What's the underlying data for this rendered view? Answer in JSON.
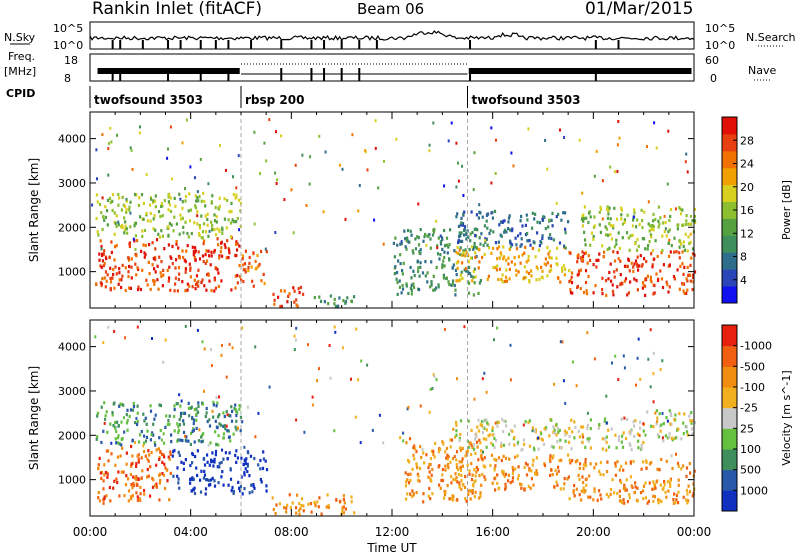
{
  "header": {
    "station": "Rankin Inlet (fitACF)",
    "beam": "Beam 06",
    "date": "01/Mar/2015"
  },
  "top_panels": {
    "nsky_label": "N.Sky",
    "nsky_ticks": [
      "10^5",
      "10^0"
    ],
    "nsearch_label": "N.Search",
    "nsearch_ticks": [
      "10^5",
      "10^0"
    ],
    "freq_label": "Freq.",
    "freq_unit": "[MHz]",
    "freq_ticks": [
      "18",
      "8"
    ],
    "nave_label": "Nave",
    "nave_ticks": [
      "60",
      "0"
    ],
    "cpid_label": "CPID",
    "cpid_segments": [
      {
        "label": "twofsound 3503",
        "start_h": 0,
        "end_h": 6
      },
      {
        "label": "rbsp 200",
        "start_h": 6,
        "end_h": 15
      },
      {
        "label": "twofsound 3503",
        "start_h": 15,
        "end_h": 24
      }
    ]
  },
  "chart_data": [
    {
      "type": "heatmap",
      "title": "",
      "xlabel": "Time UT",
      "ylabel": "Slant Range [km]",
      "xlim": [
        0,
        24
      ],
      "ylim": [
        180,
        4600
      ],
      "x_ticks": [
        "00:00",
        "04:00",
        "08:00",
        "12:00",
        "16:00",
        "20:00",
        "00:00"
      ],
      "y_ticks": [
        1000,
        2000,
        3000,
        4000
      ],
      "colorbar": {
        "label": "Power [dB]",
        "ticks": [
          "4",
          "8",
          "12",
          "16",
          "20",
          "24",
          "28"
        ],
        "colors": [
          "#1010f0",
          "#2a45b8",
          "#2f6e8a",
          "#3f8f5c",
          "#55a040",
          "#8cc030",
          "#d8d020",
          "#f0a000",
          "#f07000",
          "#e84010",
          "#e01008"
        ]
      },
      "regions": [
        {
          "t0": 0.2,
          "t1": 6.0,
          "r0": 600,
          "r1": 1800,
          "level": 9
        },
        {
          "t0": 0.2,
          "t1": 6.0,
          "r0": 1800,
          "r1": 2800,
          "level": 5
        },
        {
          "t0": 6.0,
          "t1": 7.0,
          "r0": 700,
          "r1": 1500,
          "level": 8
        },
        {
          "t0": 7.2,
          "t1": 8.5,
          "r0": 250,
          "r1": 700,
          "level": 9
        },
        {
          "t0": 8.5,
          "t1": 10.5,
          "r0": 250,
          "r1": 500,
          "level": 3
        },
        {
          "t0": 12.0,
          "t1": 15.5,
          "r0": 500,
          "r1": 2000,
          "level": 3
        },
        {
          "t0": 14.5,
          "t1": 19.0,
          "r0": 800,
          "r1": 1600,
          "level": 7
        },
        {
          "t0": 14.5,
          "t1": 19.0,
          "r0": 1600,
          "r1": 2400,
          "level": 2
        },
        {
          "t0": 19.0,
          "t1": 24.0,
          "r0": 500,
          "r1": 1500,
          "level": 9
        },
        {
          "t0": 19.5,
          "t1": 24.0,
          "r0": 1500,
          "r1": 2500,
          "level": 5
        }
      ]
    },
    {
      "type": "heatmap",
      "title": "",
      "xlabel": "Time UT",
      "ylabel": "Slant Range [km]",
      "xlim": [
        0,
        24
      ],
      "ylim": [
        180,
        4600
      ],
      "x_ticks": [
        "00:00",
        "04:00",
        "08:00",
        "12:00",
        "16:00",
        "20:00",
        "00:00"
      ],
      "y_ticks": [
        1000,
        2000,
        3000,
        4000
      ],
      "colorbar": {
        "label": "Velocity [m s^-1]",
        "ticks": [
          "1000",
          "500",
          "100",
          "25",
          "-25",
          "-100",
          "-500",
          "-1000"
        ],
        "colors": [
          "#1030c0",
          "#2858a8",
          "#3f8f5c",
          "#66c040",
          "#c8c8c8",
          "#f0b020",
          "#f08c10",
          "#f06010",
          "#e82010"
        ]
      },
      "regions": [
        {
          "t0": 0.2,
          "t1": 3.2,
          "r0": 500,
          "r1": 1800,
          "level": 7
        },
        {
          "t0": 0.2,
          "t1": 6.0,
          "r0": 1800,
          "r1": 2800,
          "level": 2
        },
        {
          "t0": 3.2,
          "t1": 7.0,
          "r0": 700,
          "r1": 1700,
          "level": 0
        },
        {
          "t0": 7.2,
          "t1": 10.5,
          "r0": 250,
          "r1": 700,
          "level": 6
        },
        {
          "t0": 12.5,
          "t1": 15.5,
          "r0": 500,
          "r1": 2000,
          "level": 6
        },
        {
          "t0": 14.5,
          "t1": 19.0,
          "r0": 800,
          "r1": 1600,
          "level": 6
        },
        {
          "t0": 14.5,
          "t1": 22.0,
          "r0": 1700,
          "r1": 2400,
          "level": 4
        },
        {
          "t0": 19.0,
          "t1": 24.0,
          "r0": 500,
          "r1": 1500,
          "level": 6
        },
        {
          "t0": 22.0,
          "t1": 24.0,
          "r0": 1900,
          "r1": 2600,
          "level": 4
        }
      ]
    }
  ]
}
